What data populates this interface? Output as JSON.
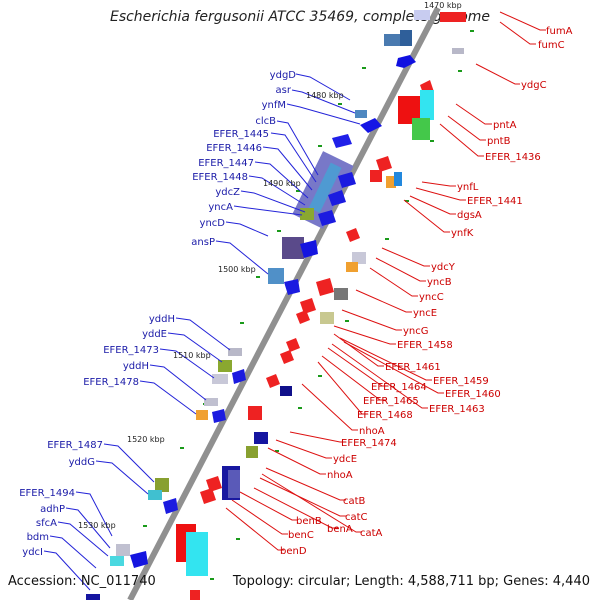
{
  "title": "Escherichia fergusonii ATCC 35469, complete genome",
  "tick_top": "1470 kbp",
  "accession": "Accession: NC_011740",
  "topology": "Topology: circular; Length: 4,588,711 bp; Genes: 4,440",
  "ticks": [
    "1480 kbp",
    "1490 kbp",
    "1500 kbp",
    "1510 kbp",
    "1520 kbp",
    "1530 kbp"
  ],
  "colors": {
    "left_label": "#1b1ba8",
    "right_label": "#cc0000",
    "backbone": "#808080"
  },
  "left_labels": [
    "ydgD",
    "asr",
    "ynfM",
    "clcB",
    "EFER_1445",
    "EFER_1446",
    "EFER_1447",
    "EFER_1448",
    "ydcZ",
    "yncA",
    "yncD",
    "ansP",
    "yddH",
    "yddE",
    "EFER_1473",
    "yddH",
    "EFER_1478",
    "EFER_1487",
    "yddG",
    "EFER_1494",
    "adhP",
    "sfcA",
    "bdm",
    "ydcI"
  ],
  "right_labels": [
    "fumA",
    "fumC",
    "ydgC",
    "pntA",
    "pntB",
    "EFER_1436",
    "ynfL",
    "EFER_1441",
    "dgsA",
    "ynfK",
    "ydcY",
    "yncB",
    "yncC",
    "yncE",
    "yncG",
    "EFER_1458",
    "EFER_1461",
    "EFER_1459",
    "EFER_1460",
    "EFER_1464",
    "EFER_1465",
    "EFER_1463",
    "EFER_1468",
    "nhoA",
    "EFER_1474",
    "ydcE",
    "nhoA",
    "catB",
    "catC",
    "benA",
    "catA",
    "benB",
    "benC",
    "benD"
  ]
}
